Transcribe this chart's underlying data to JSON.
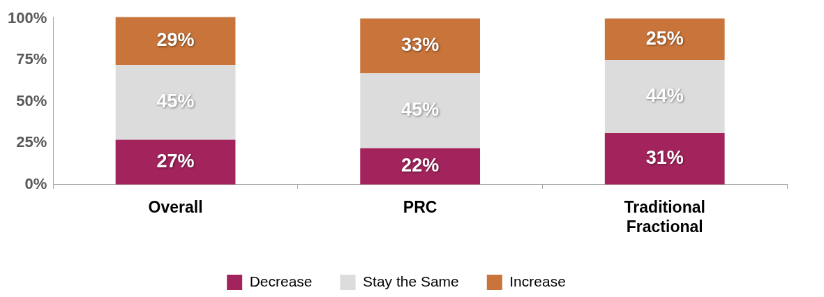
{
  "chart_data": {
    "type": "bar",
    "stacked": true,
    "categories": [
      "Overall",
      "PRC",
      "Traditional Fractional"
    ],
    "series": [
      {
        "name": "Decrease",
        "color": "#a3245c",
        "values": [
          27,
          22,
          31
        ],
        "value_labels": [
          "27%",
          "22%",
          "31%"
        ]
      },
      {
        "name": "Stay the Same",
        "color": "#dcdcdc",
        "values": [
          45,
          45,
          44
        ],
        "value_labels": [
          "45%",
          "45%",
          "44%"
        ]
      },
      {
        "name": "Increase",
        "color": "#c8743a",
        "values": [
          29,
          33,
          25
        ],
        "value_labels": [
          "29%",
          "33%",
          "25%"
        ]
      }
    ],
    "ylim": [
      0,
      101
    ],
    "yticks": [
      {
        "value": 0,
        "label": "0%"
      },
      {
        "value": 25,
        "label": "25%"
      },
      {
        "value": 50,
        "label": "50%"
      },
      {
        "value": 75,
        "label": "75%"
      },
      {
        "value": 100,
        "label": "100%"
      }
    ],
    "grid": false,
    "legend": "bottom"
  }
}
